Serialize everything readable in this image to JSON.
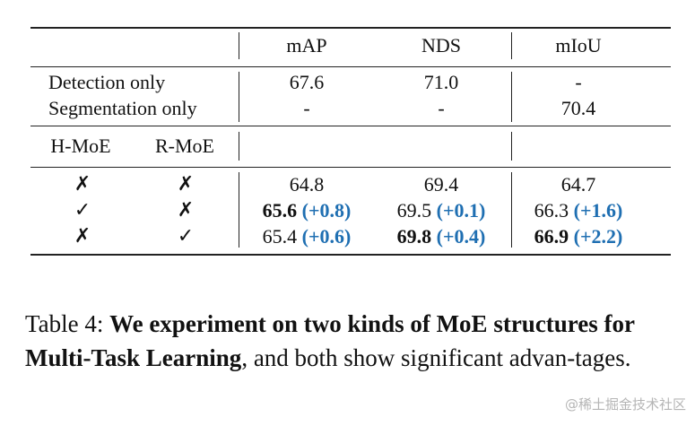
{
  "table": {
    "header": {
      "c1": "mAP",
      "c2": "NDS",
      "c3": "mIoU"
    },
    "single_task_rows": [
      {
        "label": "Detection only",
        "map": "67.6",
        "nds": "71.0",
        "miou": "-"
      },
      {
        "label": "Segmentation only",
        "map": "-",
        "nds": "-",
        "miou": "70.4"
      }
    ],
    "moe_header": {
      "h": "H-MoE",
      "r": "R-MoE"
    },
    "moe_rows": [
      {
        "h": "✗",
        "r": "✗",
        "map": "64.8",
        "map_delta": "",
        "map_bold": false,
        "nds": "69.4",
        "nds_delta": "",
        "nds_bold": false,
        "miou": "64.7",
        "miou_delta": "",
        "miou_bold": false
      },
      {
        "h": "✓",
        "r": "✗",
        "map": "65.6",
        "map_delta": "(+0.8)",
        "map_bold": true,
        "nds": "69.5",
        "nds_delta": "(+0.1)",
        "nds_bold": false,
        "miou": "66.3",
        "miou_delta": "(+1.6)",
        "miou_bold": false
      },
      {
        "h": "✗",
        "r": "✓",
        "map": "65.4",
        "map_delta": "(+0.6)",
        "map_bold": false,
        "nds": "69.8",
        "nds_delta": "(+0.4)",
        "nds_bold": true,
        "miou": "66.9",
        "miou_delta": "(+2.2)",
        "miou_bold": true
      }
    ],
    "delta_color": "#1f6fb2"
  },
  "caption": {
    "prefix": "Table 4: ",
    "bold": "We experiment on two kinds of MoE structures for Multi-Task Learning",
    "rest": ", and both show significant advan-tages."
  },
  "watermark": "@稀土掘金技术社区"
}
